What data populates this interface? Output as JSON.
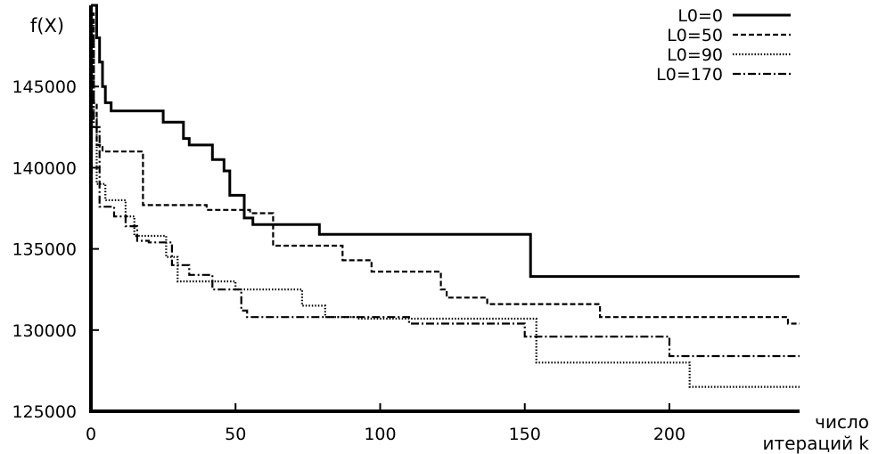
{
  "chart_data": {
    "type": "line",
    "title": "",
    "ylabel": "f(X)",
    "xlabel_lines": [
      "число",
      "итераций k"
    ],
    "xlim": [
      0,
      245
    ],
    "ylim": [
      125000,
      150000
    ],
    "x_ticks": [
      0,
      50,
      100,
      150,
      200
    ],
    "y_ticks": [
      125000,
      130000,
      135000,
      140000,
      145000
    ],
    "x_tick_labels": [
      "0",
      "50",
      "100",
      "150",
      "200"
    ],
    "y_tick_labels": [
      "125000",
      "130000",
      "135000",
      "140000",
      "145000"
    ],
    "grid": false,
    "legend_position": "top-right",
    "step": true,
    "series": [
      {
        "name": "L0=0",
        "dash": "solid",
        "points": [
          [
            0,
            150000
          ],
          [
            2,
            148000
          ],
          [
            3,
            146500
          ],
          [
            4,
            145000
          ],
          [
            5,
            144000
          ],
          [
            7,
            143500
          ],
          [
            25,
            142800
          ],
          [
            32,
            141800
          ],
          [
            34,
            141400
          ],
          [
            42,
            140500
          ],
          [
            46,
            139800
          ],
          [
            48,
            138300
          ],
          [
            53,
            136900
          ],
          [
            56,
            136500
          ],
          [
            79,
            135900
          ],
          [
            152,
            133300
          ],
          [
            245,
            133300
          ]
        ]
      },
      {
        "name": "L0=50",
        "dash": "dashed",
        "points": [
          [
            0,
            149500
          ],
          [
            1,
            144000
          ],
          [
            2,
            141400
          ],
          [
            4,
            141000
          ],
          [
            18,
            137700
          ],
          [
            40,
            137400
          ],
          [
            55,
            137200
          ],
          [
            63,
            135200
          ],
          [
            87,
            134300
          ],
          [
            97,
            133600
          ],
          [
            121,
            132500
          ],
          [
            123,
            132000
          ],
          [
            137,
            131600
          ],
          [
            176,
            130800
          ],
          [
            241,
            130400
          ],
          [
            245,
            130400
          ]
        ]
      },
      {
        "name": "L0=90",
        "dash": "dotted",
        "points": [
          [
            0,
            149000
          ],
          [
            1,
            143000
          ],
          [
            2,
            139000
          ],
          [
            5,
            138000
          ],
          [
            12,
            137000
          ],
          [
            15,
            135800
          ],
          [
            26,
            134500
          ],
          [
            30,
            133000
          ],
          [
            50,
            132500
          ],
          [
            73,
            131500
          ],
          [
            81,
            130800
          ],
          [
            92,
            130700
          ],
          [
            154,
            128000
          ],
          [
            207,
            126500
          ],
          [
            245,
            126500
          ]
        ]
      },
      {
        "name": "L0=170",
        "dash": "dashdot",
        "points": [
          [
            0,
            148000
          ],
          [
            1,
            142500
          ],
          [
            3,
            137600
          ],
          [
            8,
            137000
          ],
          [
            12,
            136400
          ],
          [
            16,
            135500
          ],
          [
            20,
            135400
          ],
          [
            28,
            134000
          ],
          [
            34,
            133400
          ],
          [
            42,
            132500
          ],
          [
            52,
            131200
          ],
          [
            54,
            130800
          ],
          [
            110,
            130400
          ],
          [
            150,
            129600
          ],
          [
            200,
            128400
          ],
          [
            245,
            128400
          ]
        ]
      }
    ]
  }
}
